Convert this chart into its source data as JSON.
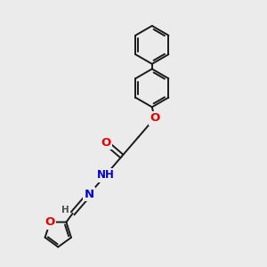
{
  "background_color": "#ebebeb",
  "bond_color": "#1a1a1a",
  "bond_width": 1.4,
  "atom_colors": {
    "O": "#e60000",
    "N": "#0000cc",
    "H_gray": "#505050"
  },
  "font_size": 8.5,
  "figsize": [
    3.0,
    3.0
  ],
  "dpi": 100,
  "xlim": [
    0,
    10
  ],
  "ylim": [
    0,
    10
  ]
}
